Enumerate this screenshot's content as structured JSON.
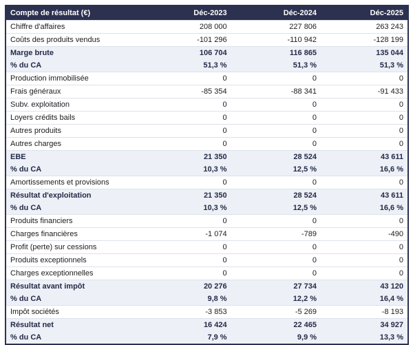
{
  "chart_data": {
    "type": "table",
    "title": "Compte de résultat (€)",
    "header": {
      "label": "Compte de résultat (€)",
      "columns": [
        "Déc-2023",
        "Déc-2024",
        "Déc-2025"
      ]
    },
    "rows": [
      {
        "label": "Chiffre d'affaires",
        "type": "normal",
        "values": [
          "208 000",
          "227 806",
          "263 243"
        ]
      },
      {
        "label": "Coûts des produits vendus",
        "type": "normal",
        "values": [
          "-101 296",
          "-110 942",
          "-128 199"
        ]
      },
      {
        "label": "Marge brute",
        "type": "total",
        "values": [
          "106 704",
          "116 865",
          "135 044"
        ]
      },
      {
        "label": "% du CA",
        "type": "percent",
        "values": [
          "51,3 %",
          "51,3 %",
          "51,3 %"
        ]
      },
      {
        "label": "Production immobilisée",
        "type": "normal",
        "values": [
          "0",
          "0",
          "0"
        ]
      },
      {
        "label": "Frais généraux",
        "type": "normal",
        "values": [
          "-85 354",
          "-88 341",
          "-91 433"
        ]
      },
      {
        "label": "Subv. exploitation",
        "type": "normal",
        "values": [
          "0",
          "0",
          "0"
        ]
      },
      {
        "label": "Loyers crédits bails",
        "type": "normal",
        "values": [
          "0",
          "0",
          "0"
        ]
      },
      {
        "label": "Autres produits",
        "type": "normal",
        "values": [
          "0",
          "0",
          "0"
        ]
      },
      {
        "label": "Autres charges",
        "type": "normal",
        "values": [
          "0",
          "0",
          "0"
        ]
      },
      {
        "label": "EBE",
        "type": "total",
        "values": [
          "21 350",
          "28 524",
          "43 611"
        ]
      },
      {
        "label": "% du CA",
        "type": "percent",
        "values": [
          "10,3 %",
          "12,5 %",
          "16,6 %"
        ]
      },
      {
        "label": "Amortissements et provisions",
        "type": "normal",
        "values": [
          "0",
          "0",
          "0"
        ]
      },
      {
        "label": "Résultat d'exploitation",
        "type": "total",
        "values": [
          "21 350",
          "28 524",
          "43 611"
        ]
      },
      {
        "label": "% du CA",
        "type": "percent",
        "values": [
          "10,3 %",
          "12,5 %",
          "16,6 %"
        ]
      },
      {
        "label": "Produits financiers",
        "type": "normal",
        "values": [
          "0",
          "0",
          "0"
        ]
      },
      {
        "label": "Charges financières",
        "type": "normal",
        "values": [
          "-1 074",
          "-789",
          "-490"
        ]
      },
      {
        "label": "Profit (perte) sur cessions",
        "type": "normal",
        "values": [
          "0",
          "0",
          "0"
        ]
      },
      {
        "label": "Produits exceptionnels",
        "type": "normal",
        "values": [
          "0",
          "0",
          "0"
        ]
      },
      {
        "label": "Charges exceptionnelles",
        "type": "normal",
        "values": [
          "0",
          "0",
          "0"
        ]
      },
      {
        "label": "Résultat avant impôt",
        "type": "total",
        "values": [
          "20 276",
          "27 734",
          "43 120"
        ]
      },
      {
        "label": "% du CA",
        "type": "percent",
        "values": [
          "9,8 %",
          "12,2 %",
          "16,4 %"
        ]
      },
      {
        "label": "Impôt sociétés",
        "type": "normal",
        "values": [
          "-3 853",
          "-5 269",
          "-8 193"
        ]
      },
      {
        "label": "Résultat net",
        "type": "total",
        "values": [
          "16 424",
          "22 465",
          "34 927"
        ]
      },
      {
        "label": "% du CA",
        "type": "percent",
        "values": [
          "7,9 %",
          "9,9 %",
          "13,3 %"
        ]
      }
    ],
    "layout": {
      "grid": "horizontal-row-separators-only",
      "highlight_row_types": [
        "total",
        "percent"
      ]
    },
    "colors": {
      "header_bg": "#2d3150",
      "header_text": "#ffffff",
      "highlight_bg": "#edf0f6",
      "highlight_text": "#232b47",
      "row_text": "#1b1b1b",
      "row_border": "#dde1ea",
      "outer_border": "#2d3150",
      "page_bg": "#ffffff"
    }
  }
}
